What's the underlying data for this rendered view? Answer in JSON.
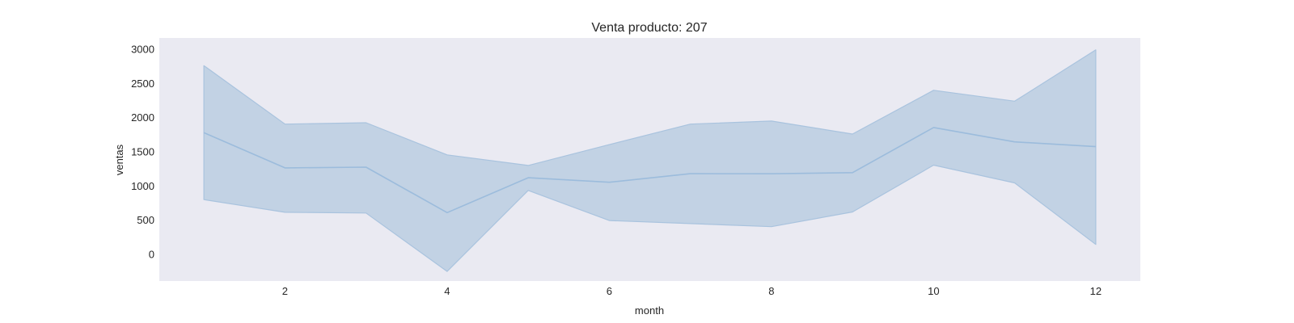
{
  "chart_data": {
    "type": "area",
    "title": "Venta producto: 207",
    "xlabel": "month",
    "ylabel": "ventas",
    "x": [
      1,
      2,
      3,
      4,
      5,
      6,
      7,
      8,
      9,
      10,
      11,
      12
    ],
    "series": [
      {
        "values": [
          1780,
          1265,
          1275,
          610,
          1120,
          1055,
          1180,
          1178,
          1195,
          1855,
          1645,
          1575
        ],
        "lower": [
          800,
          615,
          605,
          -250,
          935,
          495,
          450,
          405,
          620,
          1305,
          1045,
          145
        ],
        "upper": [
          2760,
          1905,
          1925,
          1455,
          1300,
          1605,
          1905,
          1950,
          1760,
          2400,
          2240,
          2990
        ]
      }
    ],
    "xticks": [
      2,
      4,
      6,
      8,
      10,
      12
    ],
    "yticks": [
      0,
      500,
      1000,
      1500,
      2000,
      2500,
      3000
    ],
    "xlim": [
      0.45,
      12.55
    ],
    "ylim": [
      -390,
      3165
    ],
    "grid": false,
    "colors": {
      "plot_background": "#eaeaf2",
      "band_fill": "#c2d2e4",
      "band_edge": "#a9c3de",
      "line": "#9cbcdc",
      "text": "#262626"
    }
  }
}
